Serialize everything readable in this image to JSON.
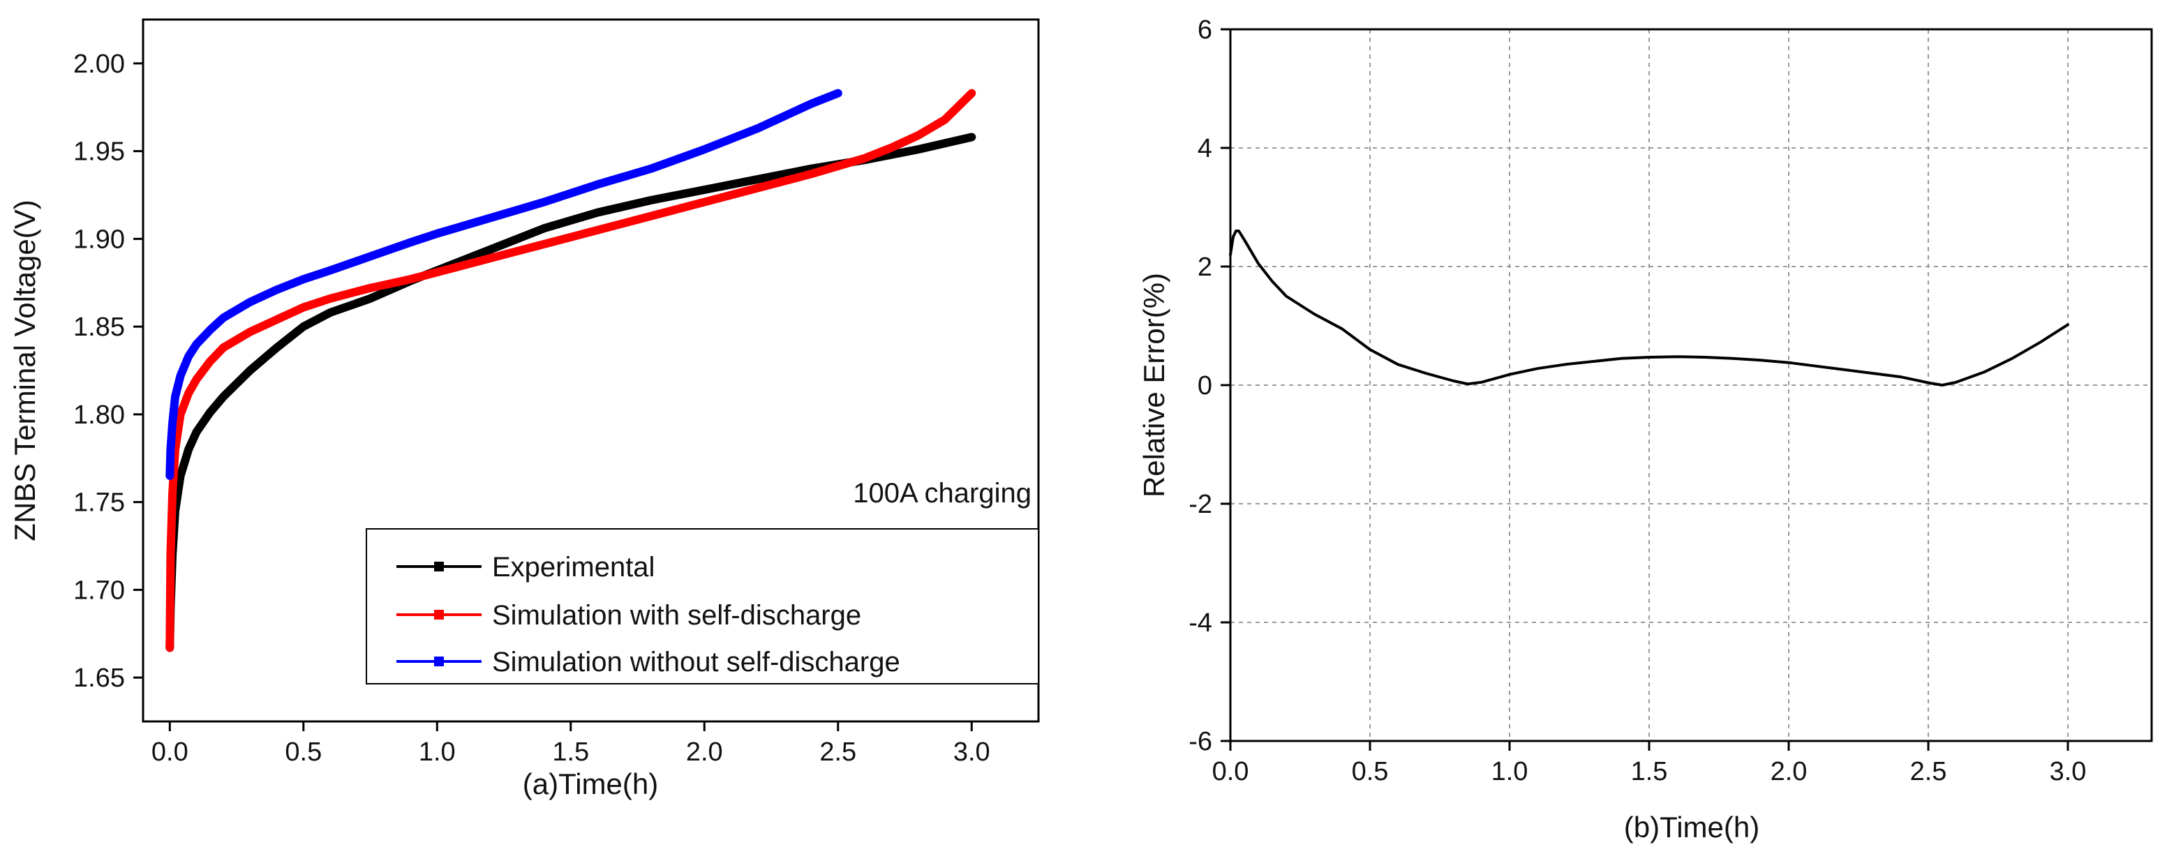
{
  "chart_data": [
    {
      "id": "a",
      "type": "line",
      "title": "",
      "xlabel": "(a)Time(h)",
      "ylabel": "ZNBS Terminal Voltage(V)",
      "xlim": [
        -0.1,
        3.25
      ],
      "ylim": [
        1.625,
        2.025
      ],
      "xticks": [
        "0.0",
        "0.5",
        "1.0",
        "1.5",
        "2.0",
        "2.5",
        "3.0"
      ],
      "yticks": [
        "1.65",
        "1.70",
        "1.75",
        "1.80",
        "1.85",
        "1.90",
        "1.95",
        "2.00"
      ],
      "grid": false,
      "legend_position": "bottom-right",
      "annotation": "100A charging",
      "series": [
        {
          "name": "Experimental",
          "color": "#000000",
          "x": [
            0,
            0.003,
            0.01,
            0.02,
            0.04,
            0.07,
            0.1,
            0.15,
            0.2,
            0.3,
            0.4,
            0.5,
            0.6,
            0.75,
            0.9,
            1.0,
            1.2,
            1.4,
            1.6,
            1.8,
            2.0,
            2.2,
            2.4,
            2.6,
            2.8,
            3.0
          ],
          "y": [
            1.667,
            1.69,
            1.72,
            1.745,
            1.765,
            1.78,
            1.79,
            1.801,
            1.81,
            1.825,
            1.838,
            1.85,
            1.858,
            1.866,
            1.876,
            1.882,
            1.894,
            1.906,
            1.915,
            1.922,
            1.928,
            1.934,
            1.94,
            1.945,
            1.951,
            1.958
          ]
        },
        {
          "name": "Simulation with self-discharge",
          "color": "#ff0000",
          "x": [
            0,
            0.003,
            0.01,
            0.02,
            0.04,
            0.07,
            0.1,
            0.15,
            0.2,
            0.3,
            0.4,
            0.5,
            0.6,
            0.75,
            0.9,
            1.0,
            1.2,
            1.4,
            1.6,
            1.8,
            2.0,
            2.2,
            2.4,
            2.6,
            2.7,
            2.8,
            2.9,
            3.0
          ],
          "y": [
            1.667,
            1.72,
            1.755,
            1.78,
            1.8,
            1.812,
            1.82,
            1.83,
            1.838,
            1.847,
            1.854,
            1.861,
            1.866,
            1.872,
            1.877,
            1.881,
            1.889,
            1.897,
            1.905,
            1.913,
            1.921,
            1.929,
            1.937,
            1.946,
            1.952,
            1.959,
            1.968,
            1.983
          ]
        },
        {
          "name": "Simulation without self-discharge",
          "color": "#0000ff",
          "x": [
            0,
            0.003,
            0.01,
            0.02,
            0.04,
            0.07,
            0.1,
            0.15,
            0.2,
            0.3,
            0.4,
            0.5,
            0.6,
            0.75,
            0.9,
            1.0,
            1.2,
            1.4,
            1.6,
            1.8,
            2.0,
            2.2,
            2.4,
            2.5
          ],
          "y": [
            1.765,
            1.78,
            1.795,
            1.81,
            1.822,
            1.833,
            1.84,
            1.848,
            1.855,
            1.864,
            1.871,
            1.877,
            1.882,
            1.89,
            1.898,
            1.903,
            1.912,
            1.921,
            1.931,
            1.94,
            1.951,
            1.963,
            1.977,
            1.983
          ]
        }
      ]
    },
    {
      "id": "b",
      "type": "line",
      "title": "",
      "xlabel": "(b)Time(h)",
      "ylabel": "Relative Error(%)",
      "xlim": [
        0,
        3.3
      ],
      "ylim": [
        -6,
        6
      ],
      "xticks": [
        "0.0",
        "0.5",
        "1.0",
        "1.5",
        "2.0",
        "2.5",
        "3.0"
      ],
      "yticks": [
        "-6",
        "-4",
        "-2",
        "0",
        "2",
        "4",
        "6"
      ],
      "grid": true,
      "series": [
        {
          "name": "Relative Error",
          "color": "#000000",
          "x": [
            0,
            0.01,
            0.02,
            0.03,
            0.05,
            0.1,
            0.15,
            0.2,
            0.3,
            0.4,
            0.5,
            0.6,
            0.7,
            0.8,
            0.85,
            0.9,
            1.0,
            1.1,
            1.2,
            1.3,
            1.4,
            1.5,
            1.6,
            1.7,
            1.8,
            1.9,
            2.0,
            2.1,
            2.2,
            2.3,
            2.4,
            2.5,
            2.55,
            2.6,
            2.7,
            2.8,
            2.9,
            3.0
          ],
          "y": [
            2.2,
            2.5,
            2.6,
            2.6,
            2.45,
            2.05,
            1.75,
            1.5,
            1.2,
            0.95,
            0.6,
            0.35,
            0.2,
            0.07,
            0.02,
            0.05,
            0.18,
            0.28,
            0.35,
            0.4,
            0.45,
            0.47,
            0.48,
            0.47,
            0.45,
            0.42,
            0.38,
            0.32,
            0.26,
            0.2,
            0.14,
            0.04,
            0.0,
            0.05,
            0.22,
            0.45,
            0.72,
            1.02
          ]
        }
      ]
    }
  ]
}
